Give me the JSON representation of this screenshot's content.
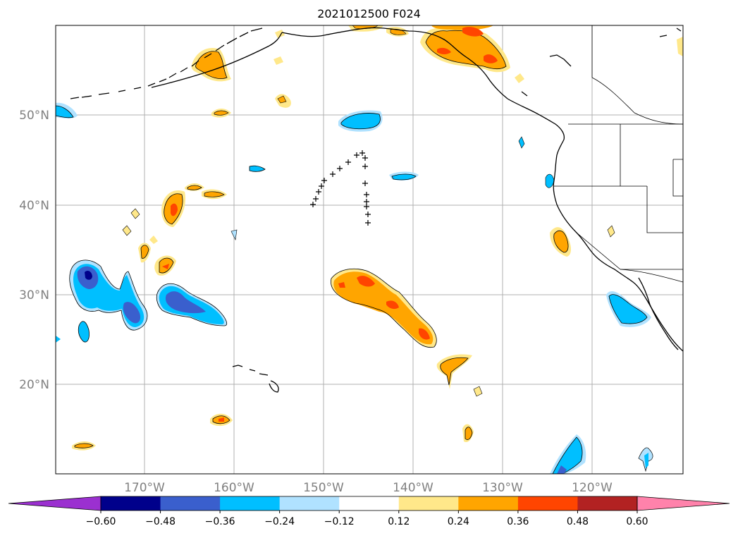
{
  "title": "2021012500 F024",
  "map": {
    "lat_labels": [
      "50°N",
      "40°N",
      "30°N",
      "20°N"
    ],
    "lon_labels": [
      "170°W",
      "160°W",
      "150°W",
      "140°W",
      "130°W",
      "120°W"
    ],
    "gridlines": true
  },
  "colorbar": {
    "levels": [
      "−0.60",
      "−0.48",
      "−0.36",
      "−0.24",
      "−0.12",
      "0.12",
      "0.24",
      "0.36",
      "0.48",
      "0.60"
    ],
    "colors": [
      "#9b30d0",
      "#00008b",
      "#3a5fcd",
      "#00bfff",
      "#b0e2ff",
      "#ffffff",
      "#ffe88a",
      "#ffa500",
      "#ff4500",
      "#b22222",
      "#ff82ab"
    ],
    "extend": "both"
  },
  "contour_colors": {
    "light_blue": "#b0e2ff",
    "blue": "#00bfff",
    "royal": "#3a5fcd",
    "navy": "#00008b",
    "yellow": "#ffe88a",
    "orange": "#ffa500",
    "red": "#ff4500"
  }
}
